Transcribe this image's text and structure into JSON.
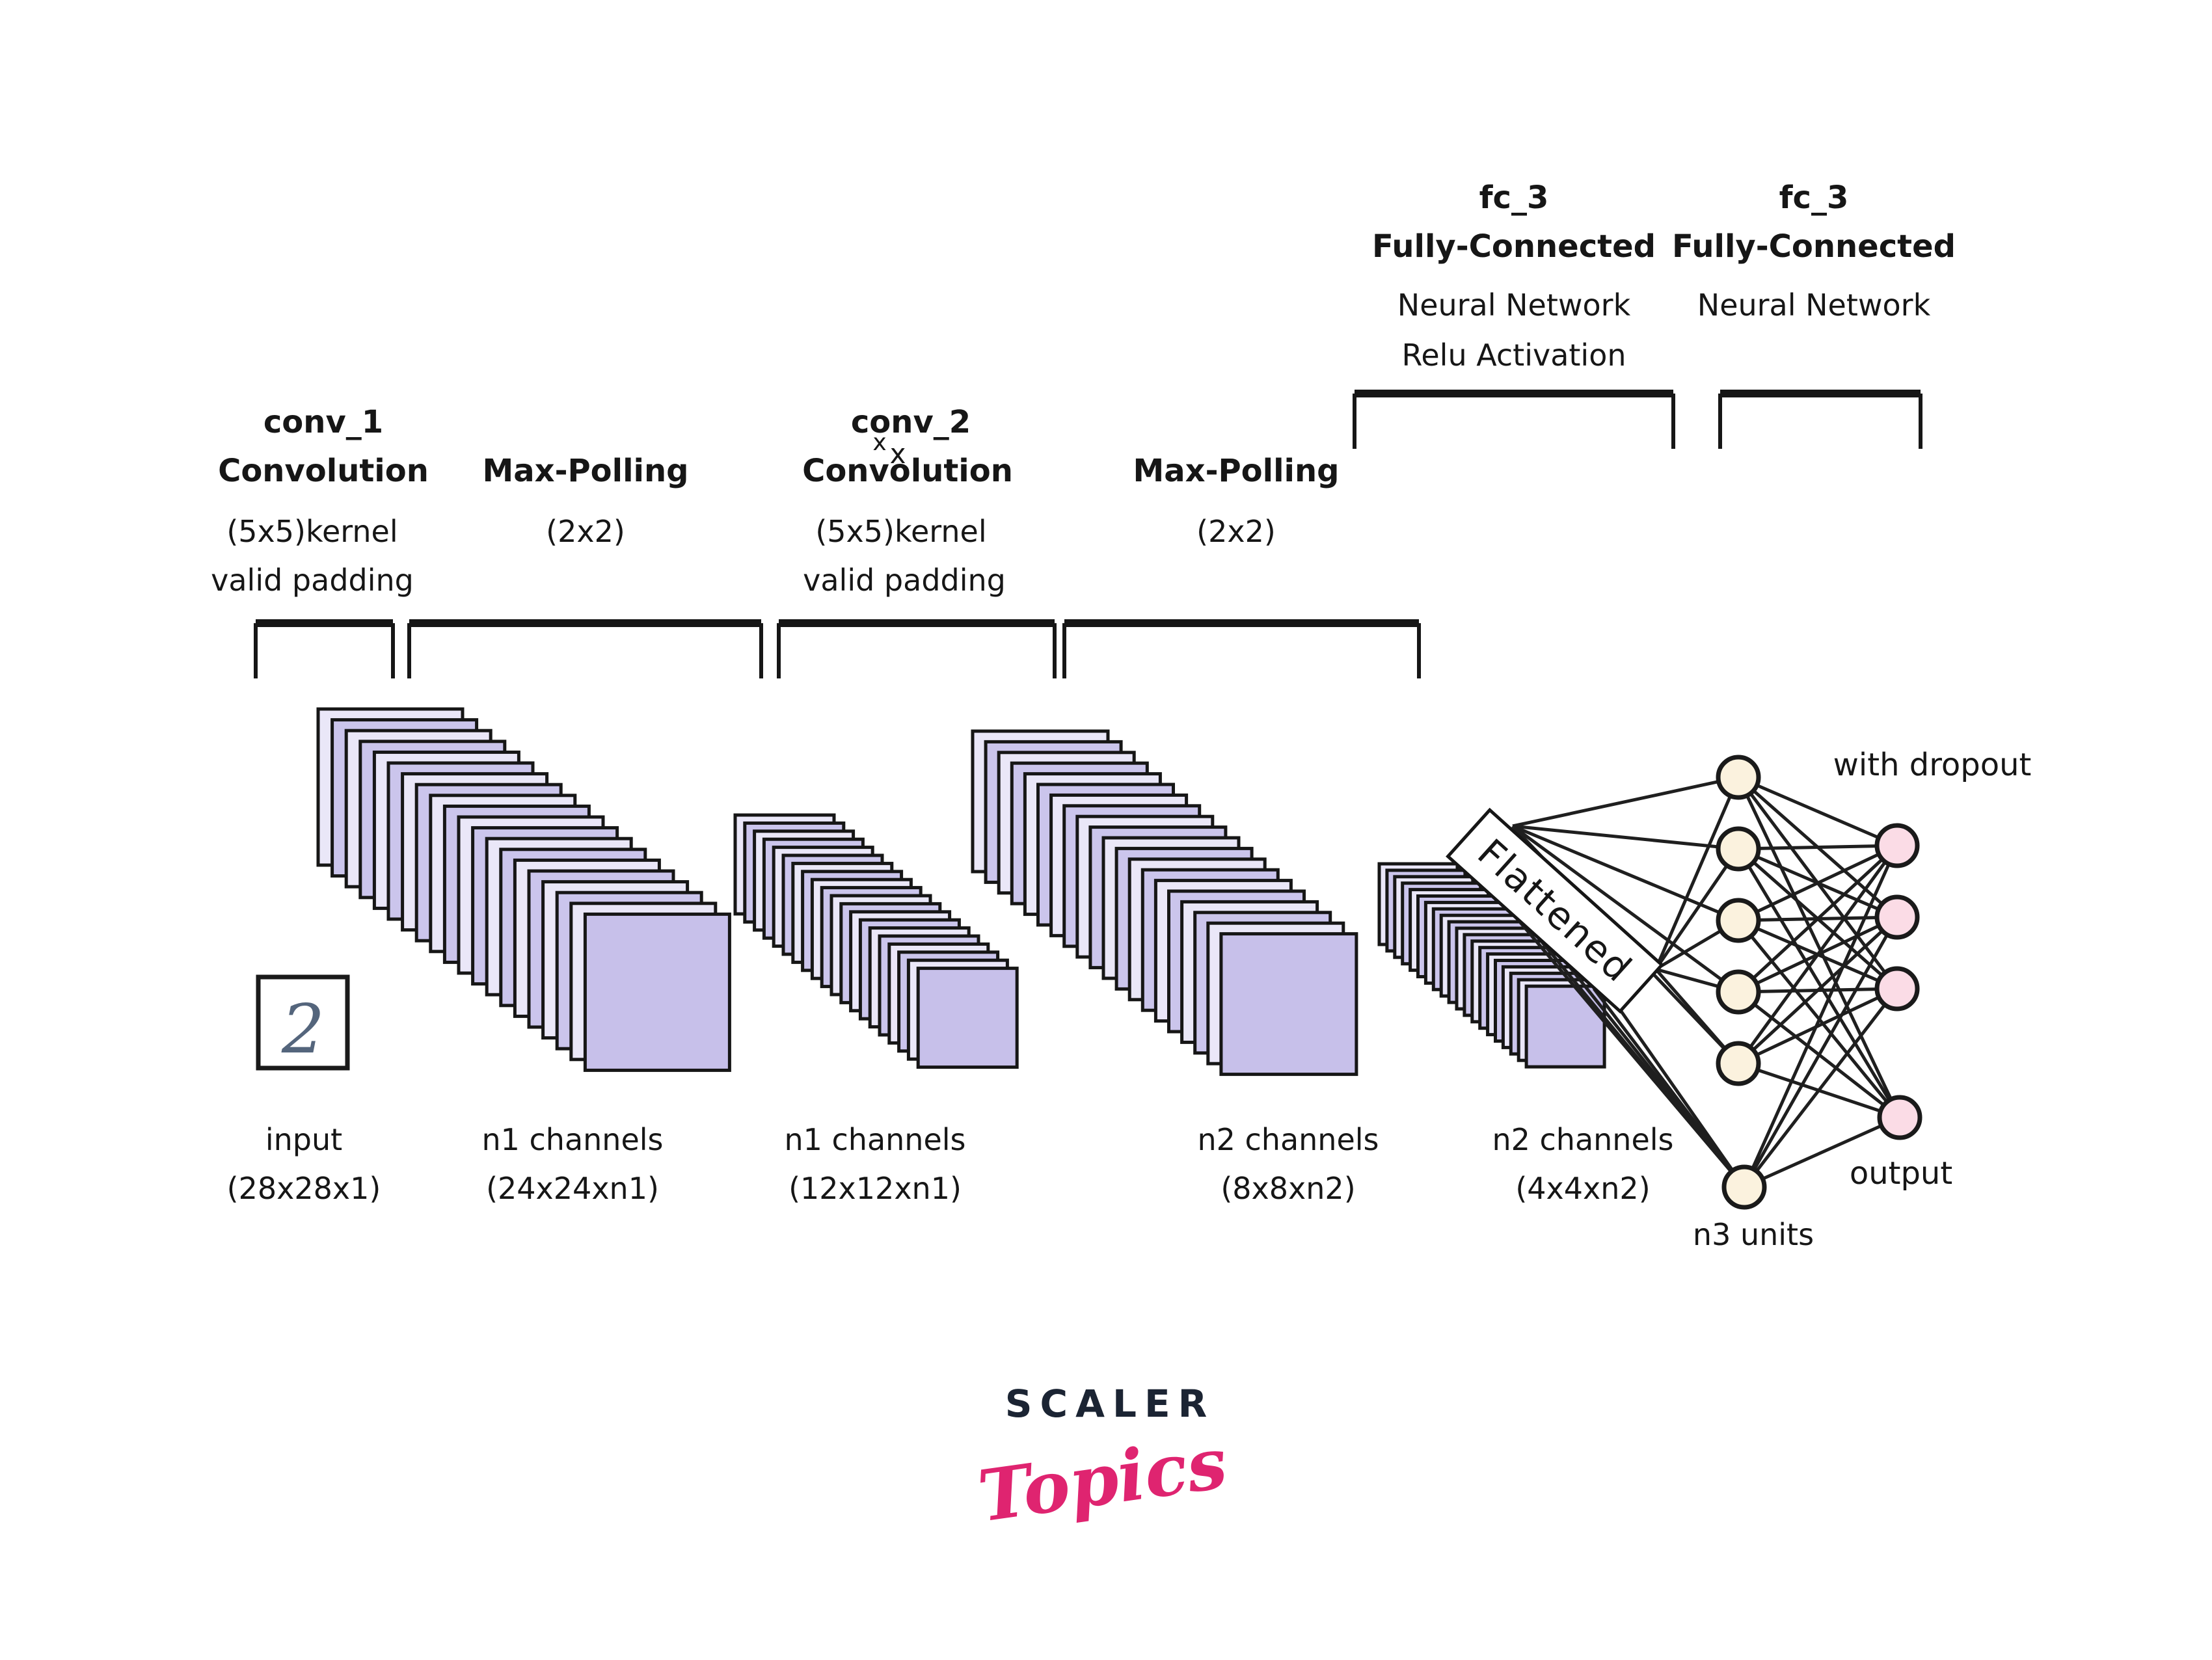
{
  "diagram": {
    "stage_labels": {
      "conv1": {
        "name": "conv_1",
        "op": "Convolution",
        "kernel": "(5x5)kernel",
        "padding": "valid padding"
      },
      "pool1": {
        "op": "Max-Polling",
        "size": "(2x2)"
      },
      "conv2": {
        "name": "conv_2",
        "op": "Convolution",
        "kernel": "(5x5)kernel",
        "padding": "valid padding",
        "x_mark": "x"
      },
      "pool2": {
        "op": "Max-Polling",
        "size": "(2x2)"
      },
      "fc_left": {
        "name": "fc_3",
        "type": "Fully-Connected",
        "line1": "Neural Network",
        "line2": "Relu Activation"
      },
      "fc_right": {
        "name": "fc_3",
        "type": "Fully-Connected",
        "line1": "Neural Network"
      }
    },
    "captions": {
      "input_line1": "input",
      "input_line2": "(28x28x1)",
      "stack1_line1": "n1 channels",
      "stack1_line2": "(24x24xn1)",
      "stack2_line1": "n1 channels",
      "stack2_line2": "(12x12xn1)",
      "stack3_line1": "n2 channels",
      "stack3_line2": "(8x8xn2)",
      "stack4_line1": "n2 channels",
      "stack4_line2": "(4x4xn2)",
      "hidden_units": "n3 units",
      "output": "output",
      "dropout_note": "with dropout",
      "flattened": "Flattened",
      "input_digit": "2"
    }
  },
  "logo": {
    "brand": "SCALER",
    "product": "Topics"
  },
  "colors": {
    "ink": "#161616",
    "sheet_light": "#eae7f8",
    "sheet_medium": "#cbc5ec",
    "sheet_front": "#c7c0ea",
    "node_cream": "#fbf2de",
    "node_pink": "#fbdce6",
    "digit": "#54657c",
    "brand_navy": "#1b2433",
    "brand_pink": "#df2470"
  }
}
